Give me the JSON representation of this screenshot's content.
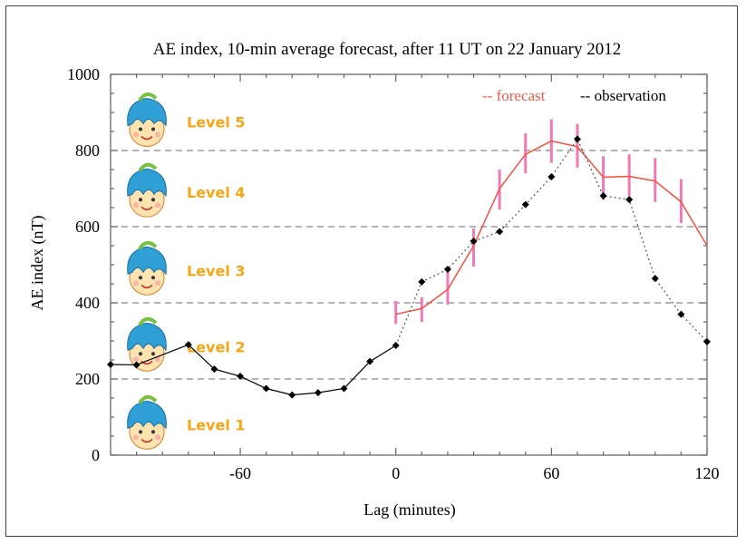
{
  "chart_data": {
    "type": "line",
    "title": "AE index, 10-min average forecast, after 11 UT on 22 January 2012",
    "xlabel": "Lag (minutes)",
    "ylabel": "AE index (nT)",
    "xlim": [
      -110,
      120
    ],
    "ylim": [
      0,
      1000
    ],
    "x_ticks": [
      -60,
      0,
      60,
      120
    ],
    "y_ticks": [
      0,
      200,
      400,
      600,
      800,
      1000
    ],
    "grid": "horizontal dashed",
    "legend": {
      "position": "top-right",
      "entries": [
        {
          "label": "-- forecast",
          "color": "#f05a4a"
        },
        {
          "label": "-- observation",
          "color": "#000000"
        }
      ]
    },
    "series": [
      {
        "name": "observation",
        "color": "#000000",
        "x": [
          -110,
          -100,
          -80,
          -70,
          -60,
          -50,
          -40,
          -30,
          -20,
          -10,
          0,
          10,
          20,
          30,
          40,
          50,
          60,
          70,
          80,
          90,
          100,
          110,
          120
        ],
        "values": [
          238,
          237,
          290,
          226,
          207,
          175,
          158,
          164,
          175,
          246,
          288,
          455,
          488,
          562,
          587,
          658,
          731,
          830,
          681,
          671,
          464,
          370,
          298
        ]
      },
      {
        "name": "forecast",
        "color": "#f05a4a",
        "x": [
          0,
          10,
          20,
          30,
          40,
          50,
          60,
          70,
          80,
          90,
          100,
          110,
          120
        ],
        "values": [
          370,
          385,
          435,
          550,
          700,
          790,
          825,
          810,
          730,
          732,
          720,
          665,
          550
        ],
        "error_low": [
          345,
          350,
          395,
          495,
          645,
          740,
          768,
          755,
          670,
          680,
          665,
          610,
          550
        ],
        "error_high": [
          405,
          415,
          482,
          595,
          750,
          845,
          882,
          870,
          785,
          790,
          780,
          725,
          550
        ],
        "error_color": "#f07ab8"
      }
    ],
    "levels": [
      {
        "label": "Level 5",
        "y": 875
      },
      {
        "label": "Level 4",
        "y": 690
      },
      {
        "label": "Level 3",
        "y": 485
      },
      {
        "label": "Level 2",
        "y": 285
      },
      {
        "label": "Level 1",
        "y": 80
      }
    ]
  }
}
